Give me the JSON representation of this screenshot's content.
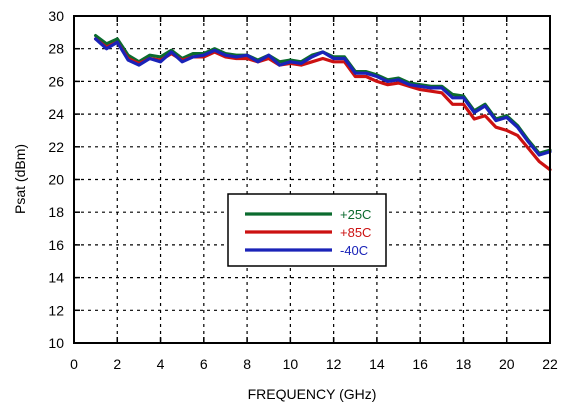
{
  "chart_data": {
    "type": "line",
    "title": "",
    "xlabel": "FREQUENCY (GHz)",
    "ylabel": "Psat (dBm)",
    "xlim": [
      0,
      22
    ],
    "ylim": [
      10,
      30
    ],
    "xticks": [
      0,
      2,
      4,
      6,
      8,
      10,
      12,
      14,
      16,
      18,
      20,
      22
    ],
    "yticks": [
      10,
      12,
      14,
      16,
      18,
      20,
      22,
      24,
      26,
      28,
      30
    ],
    "grid": true,
    "legend_position": "center",
    "series": [
      {
        "name": "+25C",
        "color": "#0b6b2e",
        "x": [
          1,
          1.5,
          2,
          2.5,
          3,
          3.5,
          4,
          4.5,
          5,
          5.5,
          6,
          6.5,
          7,
          7.5,
          8,
          8.5,
          9,
          9.5,
          10,
          10.5,
          11,
          11.5,
          12,
          12.5,
          13,
          13.5,
          14,
          14.5,
          15,
          15.5,
          16,
          16.5,
          17,
          17.5,
          18,
          18.5,
          19,
          19.5,
          20,
          20.5,
          21,
          21.5,
          22
        ],
        "values": [
          28.8,
          28.3,
          28.6,
          27.6,
          27.2,
          27.6,
          27.5,
          27.9,
          27.4,
          27.7,
          27.7,
          28.0,
          27.7,
          27.6,
          27.6,
          27.3,
          27.6,
          27.2,
          27.3,
          27.2,
          27.6,
          27.8,
          27.5,
          27.5,
          26.6,
          26.6,
          26.4,
          26.1,
          26.2,
          25.9,
          25.8,
          25.7,
          25.7,
          25.2,
          25.1,
          24.2,
          24.6,
          23.7,
          23.9,
          23.3,
          22.4,
          21.6,
          21.8
        ]
      },
      {
        "name": "+85C",
        "color": "#cc1111",
        "x": [
          1,
          1.5,
          2,
          2.5,
          3,
          3.5,
          4,
          4.5,
          5,
          5.5,
          6,
          6.5,
          7,
          7.5,
          8,
          8.5,
          9,
          9.5,
          10,
          10.5,
          11,
          11.5,
          12,
          12.5,
          13,
          13.5,
          14,
          14.5,
          15,
          15.5,
          16,
          16.5,
          17,
          17.5,
          18,
          18.5,
          19,
          19.5,
          20,
          20.5,
          21,
          21.5,
          22
        ],
        "values": [
          28.6,
          28.1,
          28.4,
          27.4,
          27.1,
          27.4,
          27.3,
          27.7,
          27.3,
          27.5,
          27.5,
          27.8,
          27.5,
          27.4,
          27.4,
          27.2,
          27.4,
          27.0,
          27.1,
          27.0,
          27.2,
          27.4,
          27.2,
          27.2,
          26.3,
          26.3,
          26.0,
          25.8,
          25.9,
          25.7,
          25.5,
          25.4,
          25.3,
          24.6,
          24.6,
          23.7,
          23.9,
          23.2,
          23.0,
          22.7,
          21.9,
          21.1,
          20.6
        ]
      },
      {
        "name": "-40C",
        "color": "#1a23b8",
        "x": [
          1,
          1.5,
          2,
          2.5,
          3,
          3.5,
          4,
          4.5,
          5,
          5.5,
          6,
          6.5,
          7,
          7.5,
          8,
          8.5,
          9,
          9.5,
          10,
          10.5,
          11,
          11.5,
          12,
          12.5,
          13,
          13.5,
          14,
          14.5,
          15,
          15.5,
          16,
          16.5,
          17,
          17.5,
          18,
          18.5,
          19,
          19.5,
          20,
          20.5,
          21,
          21.5,
          22
        ],
        "values": [
          28.6,
          28.0,
          28.4,
          27.3,
          27.0,
          27.4,
          27.2,
          27.8,
          27.2,
          27.5,
          27.6,
          27.9,
          27.6,
          27.5,
          27.6,
          27.2,
          27.6,
          27.0,
          27.2,
          27.1,
          27.5,
          27.8,
          27.4,
          27.4,
          26.5,
          26.5,
          26.3,
          26.0,
          26.1,
          25.8,
          25.7,
          25.6,
          25.6,
          25.0,
          25.0,
          24.1,
          24.5,
          23.6,
          23.8,
          23.2,
          22.3,
          21.5,
          21.7
        ]
      }
    ]
  }
}
